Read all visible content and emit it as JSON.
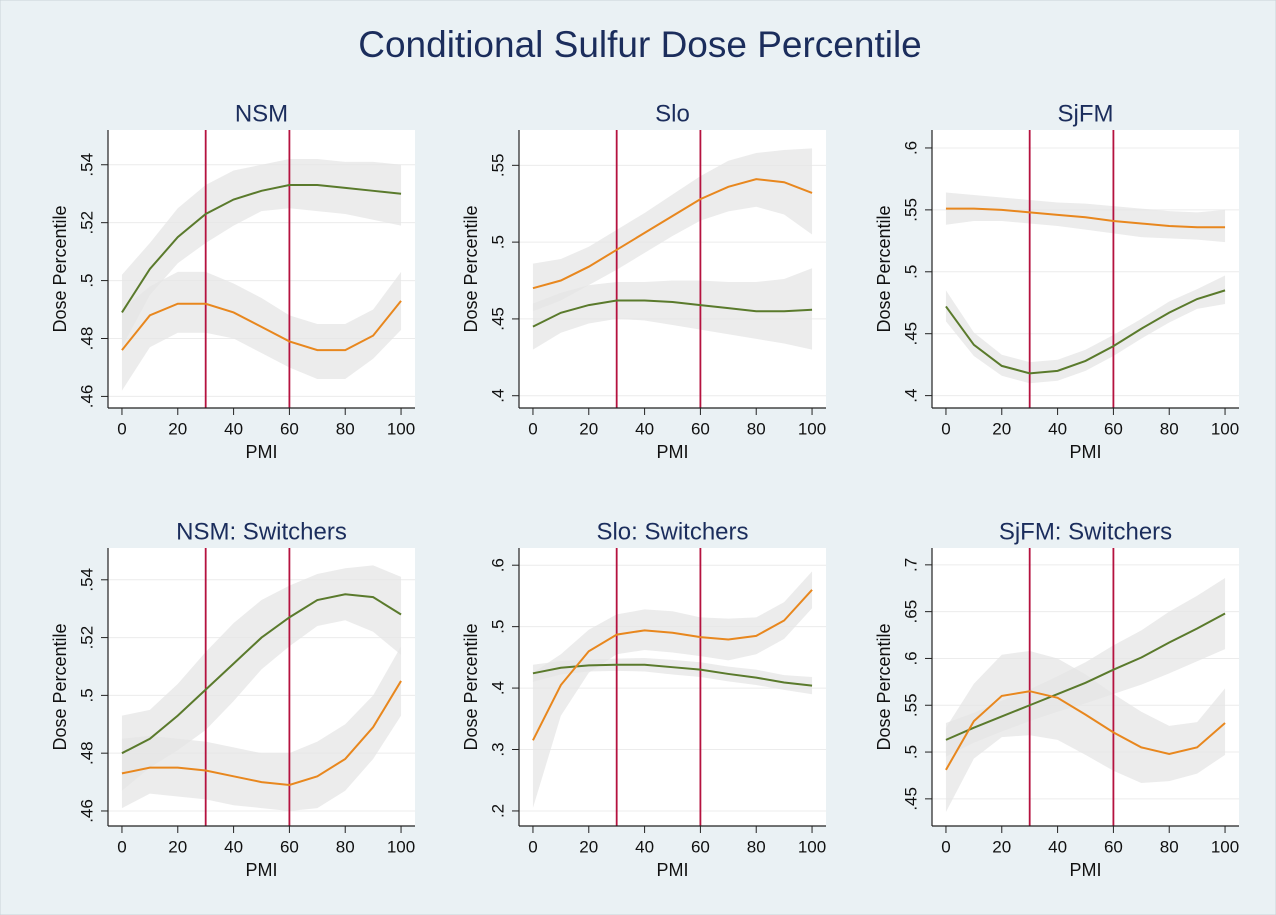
{
  "title": "Conditional Sulfur Dose Percentile",
  "chart_data": [
    {
      "type": "line",
      "title": "NSM",
      "xlabel": "PMI",
      "ylabel": "Dose Percentile",
      "x": [
        0,
        10,
        20,
        30,
        40,
        50,
        60,
        70,
        80,
        90,
        100
      ],
      "xlim": [
        -5,
        105
      ],
      "xticks": [
        0,
        20,
        40,
        60,
        80,
        100
      ],
      "ylim": [
        0.456,
        0.552
      ],
      "yticks": [
        {
          "value": 0.46,
          "label": ".46"
        },
        {
          "value": 0.48,
          "label": ".48"
        },
        {
          "value": 0.5,
          "label": ".5"
        },
        {
          "value": 0.52,
          "label": ".52"
        },
        {
          "value": 0.54,
          "label": ".54"
        }
      ],
      "grid": true,
      "vlines": [
        30,
        60
      ],
      "vline_color": "#b5123f",
      "ci_color": "#e6e6e6",
      "series": [
        {
          "color": "#5a7a2c",
          "values": [
            0.489,
            0.504,
            0.515,
            0.523,
            0.528,
            0.531,
            0.533,
            0.533,
            0.532,
            0.531,
            0.53
          ],
          "ci_lower": [
            0.477,
            0.495,
            0.506,
            0.513,
            0.519,
            0.524,
            0.525,
            0.524,
            0.523,
            0.521,
            0.519
          ],
          "ci_upper": [
            0.502,
            0.513,
            0.525,
            0.533,
            0.538,
            0.54,
            0.542,
            0.542,
            0.541,
            0.541,
            0.54
          ]
        },
        {
          "color": "#e8871e",
          "values": [
            0.476,
            0.488,
            0.492,
            0.492,
            0.489,
            0.484,
            0.479,
            0.476,
            0.476,
            0.481,
            0.493
          ],
          "ci_lower": [
            0.462,
            0.477,
            0.482,
            0.482,
            0.48,
            0.475,
            0.47,
            0.466,
            0.466,
            0.473,
            0.483
          ],
          "ci_upper": [
            0.49,
            0.498,
            0.503,
            0.503,
            0.499,
            0.494,
            0.488,
            0.485,
            0.485,
            0.49,
            0.503
          ]
        }
      ]
    },
    {
      "type": "line",
      "title": "Slo",
      "xlabel": "PMI",
      "ylabel": "Dose Percentile",
      "x": [
        0,
        10,
        20,
        30,
        40,
        50,
        60,
        70,
        80,
        90,
        100
      ],
      "xlim": [
        -5,
        105
      ],
      "xticks": [
        0,
        20,
        40,
        60,
        80,
        100
      ],
      "ylim": [
        0.392,
        0.573
      ],
      "yticks": [
        {
          "value": 0.4,
          "label": ".4"
        },
        {
          "value": 0.45,
          "label": ".45"
        },
        {
          "value": 0.5,
          "label": ".5"
        },
        {
          "value": 0.55,
          "label": ".55"
        }
      ],
      "grid": true,
      "vlines": [
        30,
        60
      ],
      "vline_color": "#b5123f",
      "ci_color": "#e6e6e6",
      "series": [
        {
          "color": "#5a7a2c",
          "values": [
            0.445,
            0.454,
            0.459,
            0.462,
            0.462,
            0.461,
            0.459,
            0.457,
            0.455,
            0.455,
            0.456
          ],
          "ci_lower": [
            0.43,
            0.441,
            0.447,
            0.45,
            0.449,
            0.446,
            0.443,
            0.44,
            0.437,
            0.434,
            0.43
          ],
          "ci_upper": [
            0.46,
            0.467,
            0.472,
            0.474,
            0.474,
            0.475,
            0.475,
            0.474,
            0.474,
            0.476,
            0.483
          ]
        },
        {
          "color": "#e8871e",
          "values": [
            0.47,
            0.475,
            0.484,
            0.495,
            0.506,
            0.517,
            0.528,
            0.536,
            0.541,
            0.539,
            0.532
          ],
          "ci_lower": [
            0.455,
            0.462,
            0.472,
            0.482,
            0.493,
            0.504,
            0.514,
            0.52,
            0.523,
            0.518,
            0.505
          ],
          "ci_upper": [
            0.486,
            0.489,
            0.497,
            0.508,
            0.519,
            0.531,
            0.543,
            0.553,
            0.558,
            0.56,
            0.561
          ]
        }
      ]
    },
    {
      "type": "line",
      "title": "SjFM",
      "xlabel": "PMI",
      "ylabel": "Dose Percentile",
      "x": [
        0,
        10,
        20,
        30,
        40,
        50,
        60,
        70,
        80,
        90,
        100
      ],
      "xlim": [
        -5,
        105
      ],
      "xticks": [
        0,
        20,
        40,
        60,
        80,
        100
      ],
      "ylim": [
        0.39,
        0.6145
      ],
      "yticks": [
        {
          "value": 0.4,
          "label": ".4"
        },
        {
          "value": 0.45,
          "label": ".45"
        },
        {
          "value": 0.5,
          "label": ".5"
        },
        {
          "value": 0.55,
          "label": ".55"
        },
        {
          "value": 0.6,
          "label": ".6"
        }
      ],
      "grid": true,
      "vlines": [
        30,
        60
      ],
      "vline_color": "#b5123f",
      "ci_color": "#e6e6e6",
      "series": [
        {
          "color": "#5a7a2c",
          "values": [
            0.472,
            0.441,
            0.424,
            0.418,
            0.42,
            0.428,
            0.44,
            0.454,
            0.467,
            0.478,
            0.485
          ],
          "ci_lower": [
            0.46,
            0.432,
            0.416,
            0.41,
            0.412,
            0.42,
            0.432,
            0.446,
            0.459,
            0.47,
            0.474
          ],
          "ci_upper": [
            0.485,
            0.451,
            0.433,
            0.427,
            0.429,
            0.437,
            0.449,
            0.462,
            0.476,
            0.486,
            0.497
          ]
        },
        {
          "color": "#e8871e",
          "values": [
            0.551,
            0.551,
            0.55,
            0.548,
            0.546,
            0.544,
            0.541,
            0.539,
            0.537,
            0.536,
            0.536
          ],
          "ci_lower": [
            0.538,
            0.541,
            0.541,
            0.539,
            0.537,
            0.534,
            0.531,
            0.528,
            0.527,
            0.526,
            0.524
          ],
          "ci_upper": [
            0.564,
            0.562,
            0.56,
            0.558,
            0.556,
            0.555,
            0.553,
            0.551,
            0.549,
            0.548,
            0.55
          ]
        }
      ]
    },
    {
      "type": "line",
      "title": "NSM: Switchers",
      "xlabel": "PMI",
      "ylabel": "Dose Percentile",
      "x": [
        0,
        10,
        20,
        30,
        40,
        50,
        60,
        70,
        80,
        90,
        100
      ],
      "xlim": [
        -5,
        105
      ],
      "xticks": [
        0,
        20,
        40,
        60,
        80,
        100
      ],
      "ylim": [
        0.4548,
        0.551
      ],
      "yticks": [
        {
          "value": 0.46,
          "label": ".46"
        },
        {
          "value": 0.48,
          "label": ".48"
        },
        {
          "value": 0.5,
          "label": ".5"
        },
        {
          "value": 0.52,
          "label": ".52"
        },
        {
          "value": 0.54,
          "label": ".54"
        }
      ],
      "grid": true,
      "vlines": [
        30,
        60
      ],
      "vline_color": "#b5123f",
      "ci_color": "#e6e6e6",
      "series": [
        {
          "color": "#5a7a2c",
          "values": [
            0.48,
            0.485,
            0.493,
            0.502,
            0.511,
            0.52,
            0.527,
            0.533,
            0.535,
            0.534,
            0.528
          ],
          "ci_lower": [
            0.467,
            0.475,
            0.481,
            0.488,
            0.498,
            0.509,
            0.517,
            0.524,
            0.526,
            0.522,
            0.514
          ],
          "ci_upper": [
            0.493,
            0.495,
            0.504,
            0.515,
            0.525,
            0.533,
            0.538,
            0.542,
            0.544,
            0.545,
            0.541
          ]
        },
        {
          "color": "#e8871e",
          "values": [
            0.473,
            0.475,
            0.475,
            0.474,
            0.472,
            0.47,
            0.469,
            0.472,
            0.478,
            0.489,
            0.505
          ],
          "ci_lower": [
            0.461,
            0.466,
            0.465,
            0.464,
            0.462,
            0.461,
            0.46,
            0.461,
            0.467,
            0.478,
            0.493
          ],
          "ci_upper": [
            0.485,
            0.486,
            0.485,
            0.484,
            0.482,
            0.48,
            0.48,
            0.484,
            0.49,
            0.5,
            0.517
          ]
        }
      ]
    },
    {
      "type": "line",
      "title": "Slo: Switchers",
      "xlabel": "PMI",
      "ylabel": "Dose Percentile",
      "x": [
        0,
        10,
        20,
        30,
        40,
        50,
        60,
        70,
        80,
        90,
        100
      ],
      "xlim": [
        -5,
        105
      ],
      "xticks": [
        0,
        20,
        40,
        60,
        80,
        100
      ],
      "ylim": [
        0.1755,
        0.628
      ],
      "yticks": [
        {
          "value": 0.2,
          "label": ".2"
        },
        {
          "value": 0.3,
          "label": ".3"
        },
        {
          "value": 0.4,
          "label": ".4"
        },
        {
          "value": 0.5,
          "label": ".5"
        },
        {
          "value": 0.6,
          "label": ".6"
        }
      ],
      "grid": true,
      "vlines": [
        30,
        60
      ],
      "vline_color": "#b5123f",
      "ci_color": "#e6e6e6",
      "series": [
        {
          "color": "#5a7a2c",
          "values": [
            0.424,
            0.433,
            0.437,
            0.438,
            0.438,
            0.434,
            0.43,
            0.423,
            0.417,
            0.409,
            0.404
          ],
          "ci_lower": [
            0.41,
            0.422,
            0.427,
            0.428,
            0.427,
            0.422,
            0.418,
            0.411,
            0.405,
            0.397,
            0.39
          ],
          "ci_upper": [
            0.438,
            0.444,
            0.447,
            0.448,
            0.449,
            0.446,
            0.442,
            0.435,
            0.43,
            0.421,
            0.418
          ]
        },
        {
          "color": "#e8871e",
          "values": [
            0.315,
            0.405,
            0.46,
            0.487,
            0.494,
            0.49,
            0.483,
            0.479,
            0.485,
            0.51,
            0.56
          ],
          "ci_lower": [
            0.205,
            0.355,
            0.425,
            0.455,
            0.462,
            0.458,
            0.452,
            0.445,
            0.455,
            0.48,
            0.53
          ],
          "ci_upper": [
            0.425,
            0.455,
            0.495,
            0.52,
            0.528,
            0.525,
            0.515,
            0.513,
            0.515,
            0.54,
            0.59
          ]
        }
      ]
    },
    {
      "type": "line",
      "title": "SjFM: Switchers",
      "xlabel": "PMI",
      "ylabel": "Dose Percentile",
      "x": [
        0,
        10,
        20,
        30,
        40,
        50,
        60,
        70,
        80,
        90,
        100
      ],
      "xlim": [
        -5,
        105
      ],
      "xticks": [
        0,
        20,
        40,
        60,
        80,
        100
      ],
      "ylim": [
        0.421,
        0.718
      ],
      "yticks": [
        {
          "value": 0.45,
          "label": ".45"
        },
        {
          "value": 0.5,
          "label": ".5"
        },
        {
          "value": 0.55,
          "label": ".55"
        },
        {
          "value": 0.6,
          "label": ".6"
        },
        {
          "value": 0.65,
          "label": ".65"
        },
        {
          "value": 0.7,
          "label": ".7"
        }
      ],
      "grid": true,
      "vlines": [
        30,
        60
      ],
      "vline_color": "#b5123f",
      "ci_color": "#e6e6e6",
      "series": [
        {
          "color": "#5a7a2c",
          "values": [
            0.513,
            0.526,
            0.538,
            0.55,
            0.562,
            0.574,
            0.588,
            0.601,
            0.617,
            0.632,
            0.648
          ],
          "ci_lower": [
            0.495,
            0.51,
            0.522,
            0.533,
            0.543,
            0.552,
            0.562,
            0.572,
            0.584,
            0.597,
            0.61
          ],
          "ci_upper": [
            0.531,
            0.542,
            0.555,
            0.567,
            0.581,
            0.596,
            0.614,
            0.63,
            0.65,
            0.667,
            0.686
          ]
        },
        {
          "color": "#e8871e",
          "values": [
            0.481,
            0.533,
            0.56,
            0.565,
            0.558,
            0.54,
            0.521,
            0.505,
            0.498,
            0.505,
            0.531
          ],
          "ci_lower": [
            0.436,
            0.493,
            0.516,
            0.518,
            0.513,
            0.497,
            0.48,
            0.467,
            0.469,
            0.477,
            0.497
          ],
          "ci_upper": [
            0.526,
            0.573,
            0.604,
            0.608,
            0.6,
            0.583,
            0.562,
            0.543,
            0.528,
            0.532,
            0.568
          ]
        }
      ]
    }
  ]
}
